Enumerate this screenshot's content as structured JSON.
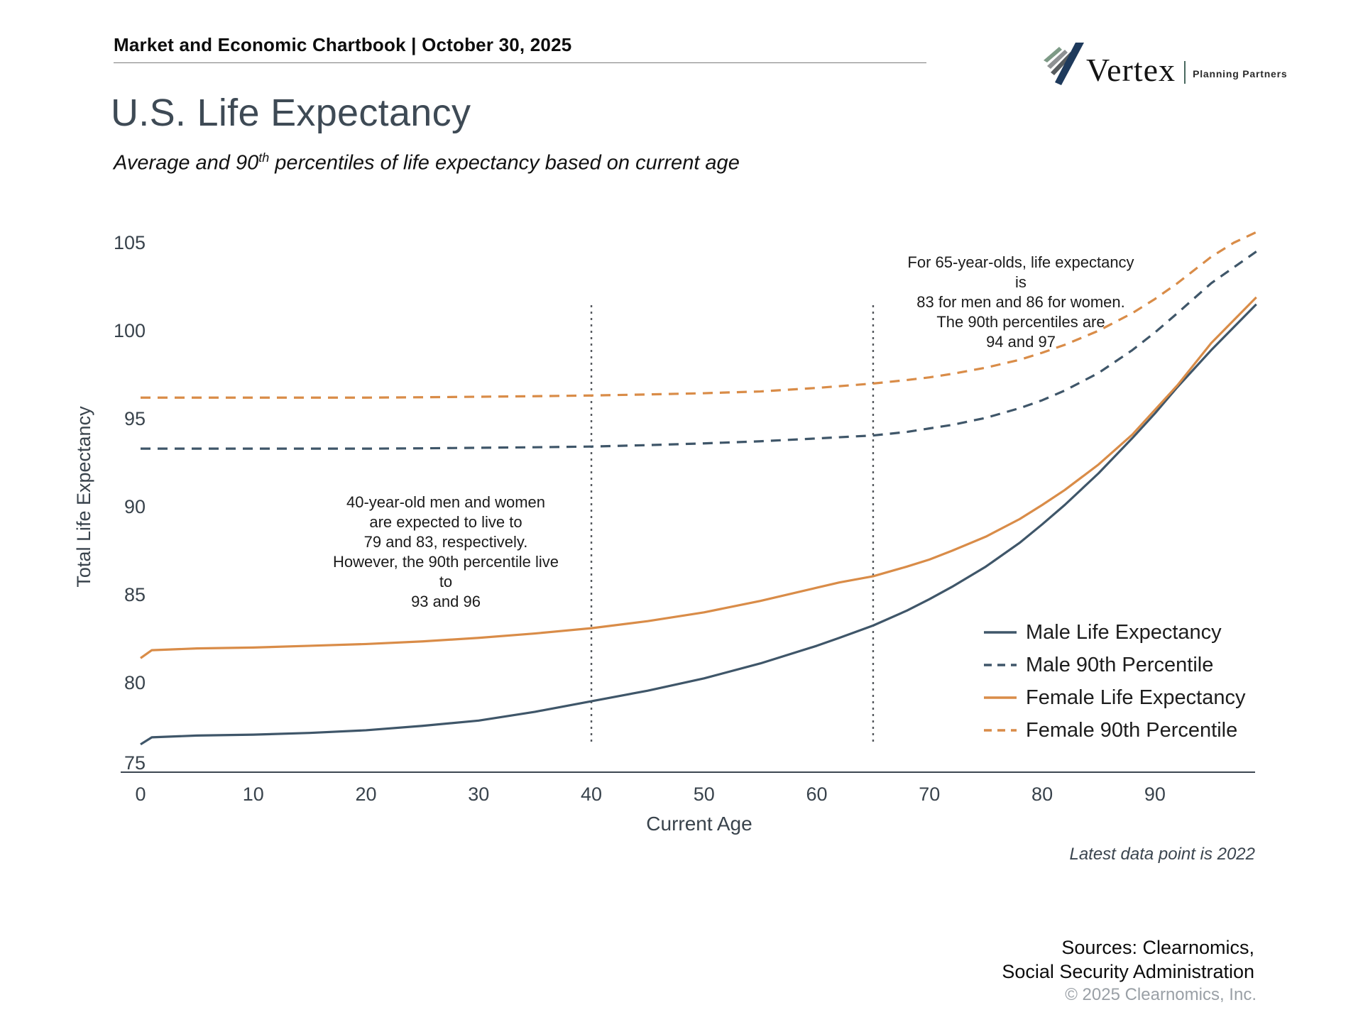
{
  "header": {
    "title": "Market and Economic Chartbook | October 30, 2025"
  },
  "logo": {
    "name": "Vertex",
    "tagline": "Planning Partners"
  },
  "icons": {
    "logo_mark": "vertex-stripes-checkmark"
  },
  "page": {
    "title": "U.S. Life Expectancy",
    "subtitle_prefix": "Average and 90",
    "subtitle_sup": "th",
    "subtitle_suffix": " percentiles of life expectancy based on current age"
  },
  "colors": {
    "male": "#3f5669",
    "female": "#d98c48",
    "axis": "#3d4751",
    "tick_label": "#39434c",
    "marker_line": "#55595e",
    "title": "#3e4a55"
  },
  "chart_data": {
    "type": "line",
    "title": "U.S. Life Expectancy",
    "xlabel": "Current Age",
    "ylabel": "Total Life Expectancy",
    "xlim": [
      0,
      99
    ],
    "ylim": [
      75,
      105
    ],
    "x_ticks": [
      0,
      10,
      20,
      30,
      40,
      50,
      60,
      70,
      80,
      90
    ],
    "y_ticks": [
      75,
      80,
      85,
      90,
      95,
      100,
      105
    ],
    "grid": false,
    "legend_position": "inside lower right",
    "x": [
      0,
      1,
      3,
      5,
      10,
      15,
      20,
      25,
      30,
      35,
      40,
      45,
      50,
      55,
      60,
      62,
      65,
      68,
      70,
      72,
      75,
      78,
      80,
      82,
      85,
      88,
      90,
      92,
      95,
      97,
      99
    ],
    "series": [
      {
        "name": "Male Life Expectancy",
        "color": "#3f5669",
        "dash": false,
        "values": [
          76.5,
          76.9,
          76.95,
          77.0,
          77.05,
          77.15,
          77.3,
          77.55,
          77.85,
          78.35,
          78.95,
          79.55,
          80.25,
          81.1,
          82.1,
          82.55,
          83.25,
          84.1,
          84.75,
          85.45,
          86.6,
          87.95,
          89.0,
          90.1,
          91.9,
          93.9,
          95.3,
          96.8,
          98.9,
          100.2,
          101.5
        ]
      },
      {
        "name": "Male 90th Percentile",
        "color": "#3f5669",
        "dash": true,
        "values": [
          93.3,
          93.3,
          93.3,
          93.3,
          93.3,
          93.3,
          93.3,
          93.32,
          93.35,
          93.38,
          93.42,
          93.5,
          93.6,
          93.72,
          93.88,
          93.95,
          94.05,
          94.25,
          94.45,
          94.65,
          95.05,
          95.6,
          96.05,
          96.6,
          97.6,
          98.9,
          99.9,
          101.0,
          102.7,
          103.6,
          104.5
        ]
      },
      {
        "name": "Female Life Expectancy",
        "color": "#d98c48",
        "dash": false,
        "values": [
          81.4,
          81.85,
          81.9,
          81.95,
          82.0,
          82.1,
          82.2,
          82.35,
          82.55,
          82.8,
          83.1,
          83.5,
          84.0,
          84.65,
          85.4,
          85.7,
          86.05,
          86.6,
          87.0,
          87.5,
          88.3,
          89.3,
          90.1,
          90.95,
          92.4,
          94.1,
          95.5,
          96.9,
          99.3,
          100.6,
          101.9
        ]
      },
      {
        "name": "Female 90th Percentile",
        "color": "#d98c48",
        "dash": true,
        "values": [
          96.2,
          96.2,
          96.2,
          96.2,
          96.2,
          96.2,
          96.2,
          96.22,
          96.25,
          96.28,
          96.32,
          96.38,
          96.45,
          96.55,
          96.75,
          96.85,
          97.0,
          97.2,
          97.35,
          97.55,
          97.9,
          98.35,
          98.75,
          99.2,
          100.0,
          101.0,
          101.8,
          102.7,
          104.2,
          105.0,
          105.6
        ]
      }
    ],
    "markers": [
      {
        "x": 40
      },
      {
        "x": 65
      }
    ],
    "annotations": [
      {
        "text": "40-year-old men and women\nare expected to live to\n79 and 83, respectively.\nHowever, the 90th percentile live to\n93 and 96"
      },
      {
        "text": "For 65-year-olds, life expectancy is\n83 for men and 86 for women.\nThe 90th percentiles are\n94 and 97"
      }
    ],
    "footnote": "Latest data point is 2022"
  },
  "sources": "Sources: Clearnomics,\nSocial Security Administration",
  "copyright": "© 2025 Clearnomics, Inc."
}
